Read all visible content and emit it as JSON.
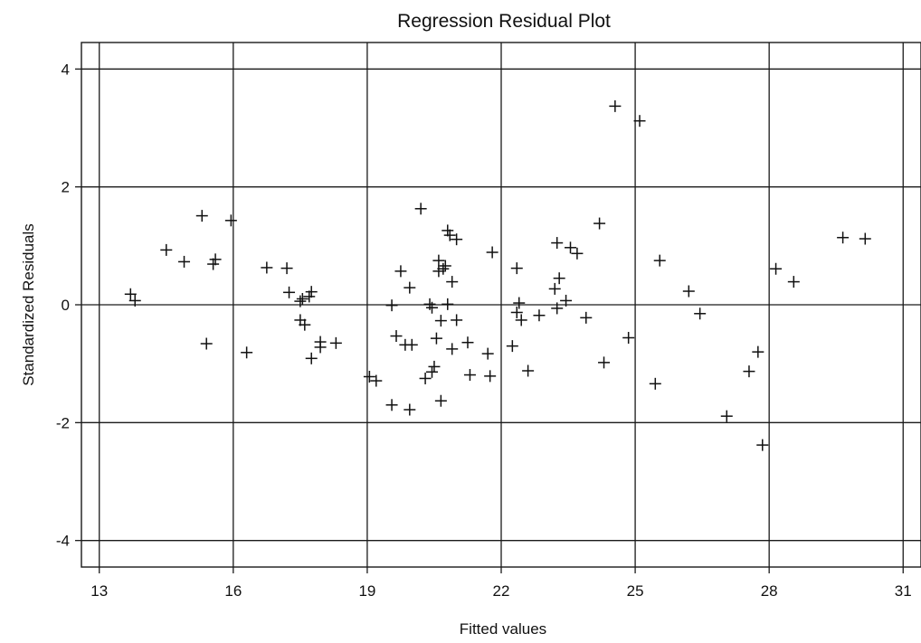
{
  "chart_data": {
    "type": "scatter",
    "title": "Regression Residual Plot",
    "xlabel": "Fitted values",
    "ylabel": "Standardized Residuals",
    "xlim": [
      12.6,
      31.4
    ],
    "ylim": [
      -4.45,
      4.45
    ],
    "xticks": [
      13,
      16,
      19,
      22,
      25,
      28,
      31
    ],
    "yticks": [
      -4,
      -2,
      0,
      2,
      4
    ],
    "grid": true,
    "marker": "plus",
    "zero_line": 0,
    "points": [
      [
        13.7,
        0.18
      ],
      [
        13.8,
        0.07
      ],
      [
        14.5,
        0.93
      ],
      [
        14.9,
        0.73
      ],
      [
        15.3,
        1.51
      ],
      [
        15.4,
        -0.66
      ],
      [
        15.55,
        0.69
      ],
      [
        15.6,
        0.77
      ],
      [
        15.95,
        1.43
      ],
      [
        16.3,
        -0.81
      ],
      [
        16.75,
        0.63
      ],
      [
        17.2,
        0.62
      ],
      [
        17.25,
        0.21
      ],
      [
        17.5,
        0.06
      ],
      [
        17.5,
        -0.26
      ],
      [
        17.55,
        0.1
      ],
      [
        17.6,
        -0.34
      ],
      [
        17.7,
        0.14
      ],
      [
        17.75,
        0.22
      ],
      [
        17.75,
        -0.91
      ],
      [
        17.95,
        -0.63
      ],
      [
        17.95,
        -0.72
      ],
      [
        18.3,
        -0.65
      ],
      [
        19.05,
        -1.22
      ],
      [
        19.2,
        -1.29
      ],
      [
        19.55,
        -1.7
      ],
      [
        19.55,
        -0.01
      ],
      [
        19.65,
        -0.53
      ],
      [
        19.75,
        0.57
      ],
      [
        19.85,
        -0.68
      ],
      [
        19.95,
        0.29
      ],
      [
        19.95,
        -1.78
      ],
      [
        20.0,
        -0.68
      ],
      [
        20.2,
        1.63
      ],
      [
        20.3,
        -1.25
      ],
      [
        20.4,
        0.01
      ],
      [
        20.45,
        -0.05
      ],
      [
        20.45,
        -1.14
      ],
      [
        20.5,
        -1.05
      ],
      [
        20.55,
        -0.57
      ],
      [
        20.6,
        0.75
      ],
      [
        20.6,
        0.57
      ],
      [
        20.65,
        -1.63
      ],
      [
        20.65,
        -0.27
      ],
      [
        20.7,
        0.61
      ],
      [
        20.75,
        0.66
      ],
      [
        20.8,
        1.26
      ],
      [
        20.8,
        0.01
      ],
      [
        20.85,
        1.18
      ],
      [
        20.9,
        -0.75
      ],
      [
        20.9,
        0.39
      ],
      [
        21.0,
        1.11
      ],
      [
        21.0,
        -0.26
      ],
      [
        21.25,
        -0.64
      ],
      [
        21.3,
        -1.19
      ],
      [
        21.7,
        -0.83
      ],
      [
        21.75,
        -1.21
      ],
      [
        21.8,
        0.89
      ],
      [
        22.25,
        -0.7
      ],
      [
        22.35,
        0.62
      ],
      [
        22.35,
        -0.13
      ],
      [
        22.4,
        0.03
      ],
      [
        22.45,
        -0.26
      ],
      [
        22.6,
        -1.12
      ],
      [
        22.85,
        -0.18
      ],
      [
        23.2,
        0.27
      ],
      [
        23.25,
        1.05
      ],
      [
        23.25,
        -0.06
      ],
      [
        23.3,
        0.45
      ],
      [
        23.45,
        0.07
      ],
      [
        23.55,
        0.97
      ],
      [
        23.7,
        0.87
      ],
      [
        23.9,
        -0.22
      ],
      [
        24.2,
        1.38
      ],
      [
        24.3,
        -0.98
      ],
      [
        24.55,
        3.37
      ],
      [
        24.85,
        -0.56
      ],
      [
        25.1,
        3.12
      ],
      [
        25.45,
        -1.34
      ],
      [
        25.55,
        0.75
      ],
      [
        26.2,
        0.23
      ],
      [
        26.45,
        -0.15
      ],
      [
        27.05,
        -1.89
      ],
      [
        27.55,
        -1.13
      ],
      [
        27.75,
        -0.8
      ],
      [
        27.85,
        -2.38
      ],
      [
        28.15,
        0.61
      ],
      [
        28.55,
        0.39
      ],
      [
        29.65,
        1.14
      ],
      [
        30.15,
        1.12
      ]
    ]
  }
}
